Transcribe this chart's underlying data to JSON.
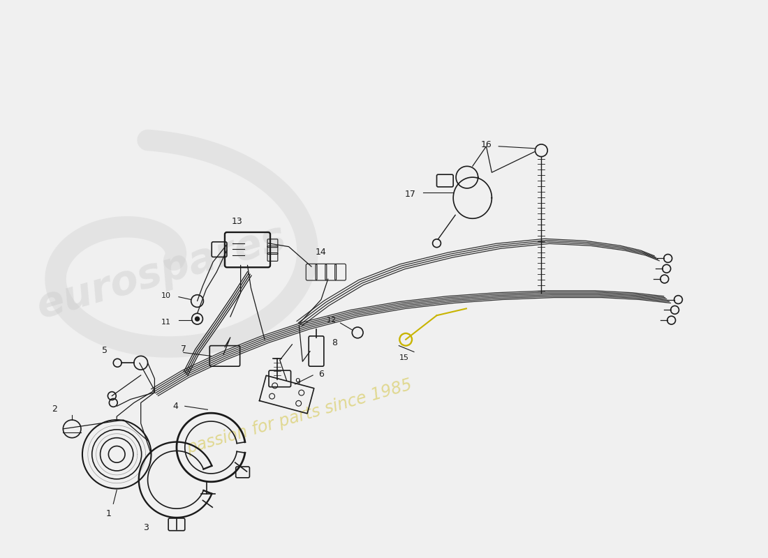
{
  "background_color": "#f0f0f0",
  "line_color": "#1a1a1a",
  "watermark_color": "#cccccc",
  "yellow_color": "#c8b400",
  "part_labels": [
    "1",
    "2",
    "3",
    "4",
    "5",
    "6",
    "7",
    "8",
    "9",
    "10",
    "11",
    "12",
    "13",
    "14",
    "15",
    "16",
    "17"
  ]
}
